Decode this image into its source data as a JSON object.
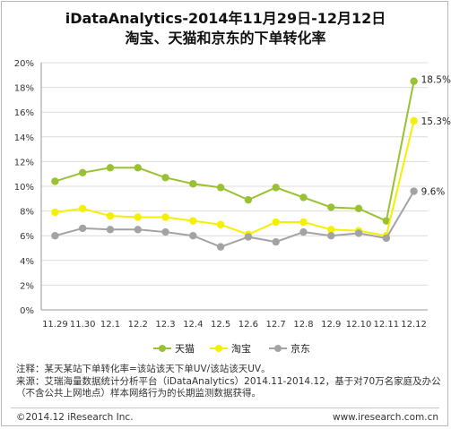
{
  "chart_data": {
    "type": "line",
    "title": "iDataAnalytics-2014年11月29日-12月12日",
    "subtitle": "淘宝、天猫和京东的下单转化率",
    "categories": [
      "11.29",
      "11.30",
      "12.1",
      "12.2",
      "12.3",
      "12.4",
      "12.5",
      "12.6",
      "12.7",
      "12.8",
      "12.9",
      "12.10",
      "12.11",
      "12.12"
    ],
    "ylim": [
      0,
      20
    ],
    "ytick_labels": [
      "0%",
      "2%",
      "4%",
      "6%",
      "8%",
      "10%",
      "12%",
      "14%",
      "16%",
      "18%",
      "20%"
    ],
    "grid": true,
    "legend_position": "bottom",
    "series": [
      {
        "name": "天猫",
        "color": "#9ac133",
        "values": [
          10.4,
          11.1,
          11.5,
          11.5,
          10.7,
          10.2,
          9.9,
          8.9,
          9.9,
          9.1,
          8.3,
          8.2,
          7.2,
          18.5
        ],
        "end_label": "18.5%"
      },
      {
        "name": "淘宝",
        "color": "#f5f000",
        "values": [
          7.9,
          8.2,
          7.6,
          7.5,
          7.5,
          7.2,
          6.9,
          6.1,
          7.1,
          7.1,
          6.5,
          6.4,
          6.0,
          15.3
        ],
        "end_label": "15.3%"
      },
      {
        "name": "京东",
        "color": "#a3a3a3",
        "values": [
          6.0,
          6.6,
          6.5,
          6.5,
          6.3,
          6.0,
          5.1,
          5.9,
          5.5,
          6.3,
          6.0,
          6.2,
          5.8,
          9.6
        ],
        "end_label": "9.6%"
      }
    ]
  },
  "notes": [
    "注释：某天某站下单转化率=该站该天下单UV/该站该天UV。",
    "来源：艾瑞海量数据统计分析平台（iDataAnalytics）2014.11-2014.12，基于对70万名家庭及办公",
    "（不含公共上网地点）样本网络行为的长期监测数据获得。"
  ],
  "footer": {
    "copyright": "©2014.12 iResearch Inc.",
    "website": "www.iresearch.com.cn"
  }
}
